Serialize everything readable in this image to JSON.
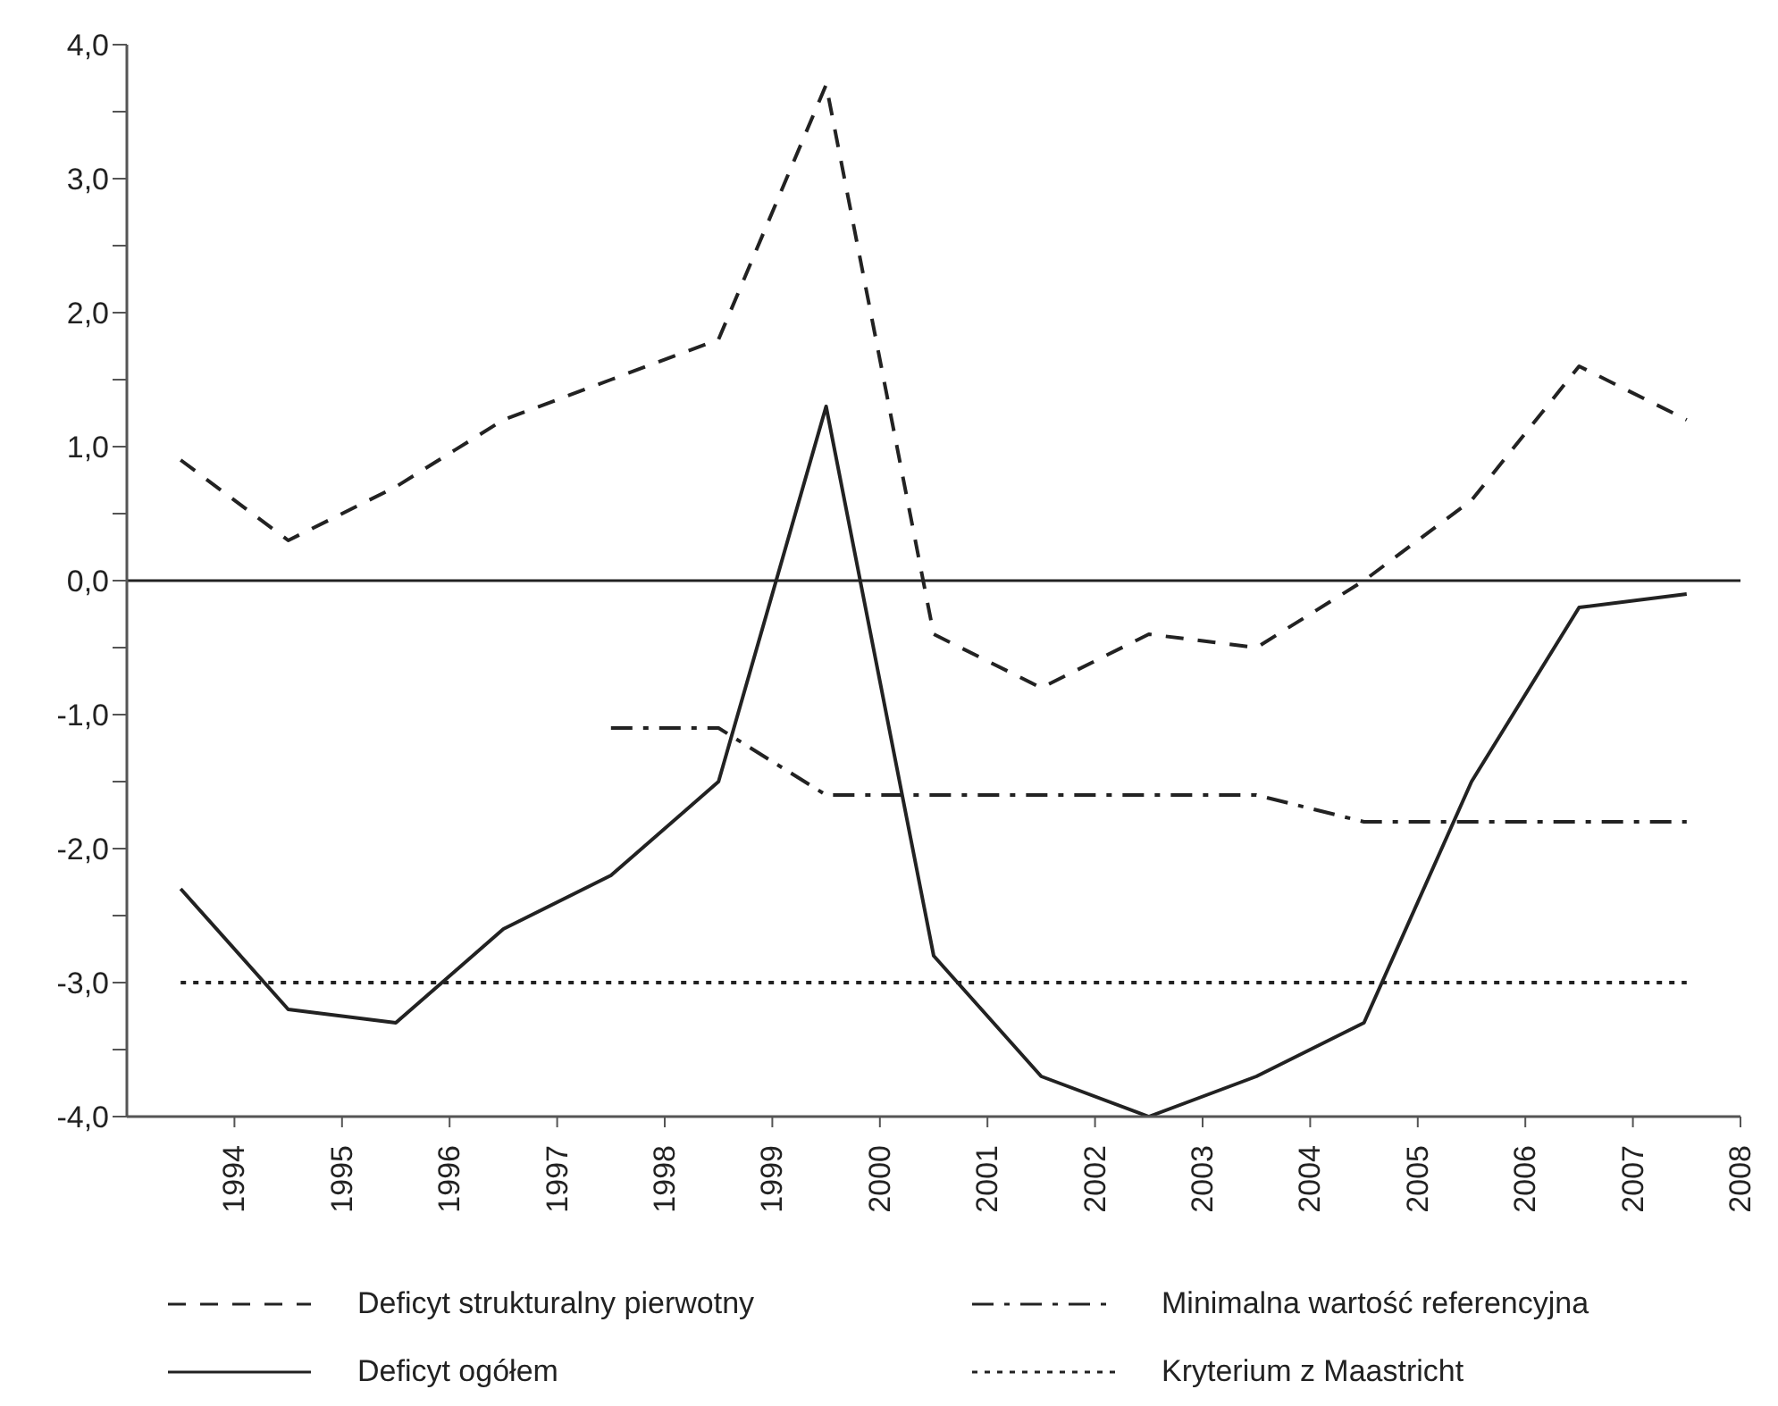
{
  "chart_data": {
    "type": "line",
    "x": [
      1993.5,
      1994.5,
      1995.5,
      1996.5,
      1997.5,
      1998.5,
      1999.5,
      2000.5,
      2001.5,
      2002.5,
      2003.5,
      2004.5,
      2005.5,
      2006.5,
      2007.5
    ],
    "series": [
      {
        "name": "Deficyt strukturalny pierwotny",
        "color": "#222222",
        "line_style": "dashed",
        "values": [
          0.9,
          0.3,
          0.7,
          1.2,
          1.5,
          1.8,
          3.7,
          -0.4,
          -0.8,
          -0.4,
          -0.5,
          0.0,
          0.6,
          1.6,
          1.2
        ]
      },
      {
        "name": "Minimalna wartość referencyjna",
        "color": "#222222",
        "line_style": "dashdot",
        "values": [
          null,
          null,
          null,
          null,
          -1.1,
          -1.1,
          -1.6,
          -1.6,
          -1.6,
          -1.6,
          -1.6,
          -1.8,
          -1.8,
          -1.8,
          -1.8
        ]
      },
      {
        "name": "Deficyt ogółem",
        "color": "#222222",
        "line_style": "solid",
        "values": [
          -2.3,
          -3.2,
          -3.3,
          -2.6,
          -2.2,
          -1.5,
          1.3,
          -2.8,
          -3.7,
          -4.0,
          -3.7,
          -3.3,
          -1.5,
          -0.2,
          -0.1
        ]
      },
      {
        "name": "Kryterium z Maastricht",
        "color": "#222222",
        "line_style": "dotted",
        "values": [
          -3,
          -3,
          -3,
          -3,
          -3,
          -3,
          -3,
          -3,
          -3,
          -3,
          -3,
          -3,
          -3,
          -3,
          -3
        ]
      }
    ],
    "xlim": [
      1993,
      2008
    ],
    "xticks": [
      1994,
      1995,
      1996,
      1997,
      1998,
      1999,
      2000,
      2001,
      2002,
      2003,
      2004,
      2005,
      2006,
      2007,
      2008
    ],
    "ylim": [
      -4,
      4
    ],
    "yticks": [
      {
        "value": -4,
        "label": "-4,0"
      },
      {
        "value": -3.5,
        "label": null
      },
      {
        "value": -3,
        "label": "-3,0"
      },
      {
        "value": -2.5,
        "label": null
      },
      {
        "value": -2,
        "label": "-2,0"
      },
      {
        "value": -1.5,
        "label": null
      },
      {
        "value": -1,
        "label": "-1,0"
      },
      {
        "value": -0.5,
        "label": null
      },
      {
        "value": 0,
        "label": "0,0"
      },
      {
        "value": 0.5,
        "label": null
      },
      {
        "value": 1,
        "label": "1,0"
      },
      {
        "value": 1.5,
        "label": null
      },
      {
        "value": 2,
        "label": "2,0"
      },
      {
        "value": 2.5,
        "label": null
      },
      {
        "value": 3,
        "label": "3,0"
      },
      {
        "value": 3.5,
        "label": null
      },
      {
        "value": 4,
        "label": "4,0"
      }
    ],
    "ref_lines": [
      {
        "axis": "y",
        "value": 0,
        "color": "#222222",
        "line_style": "solid"
      }
    ],
    "grid": false,
    "marker": "none",
    "legend": "bottom"
  }
}
